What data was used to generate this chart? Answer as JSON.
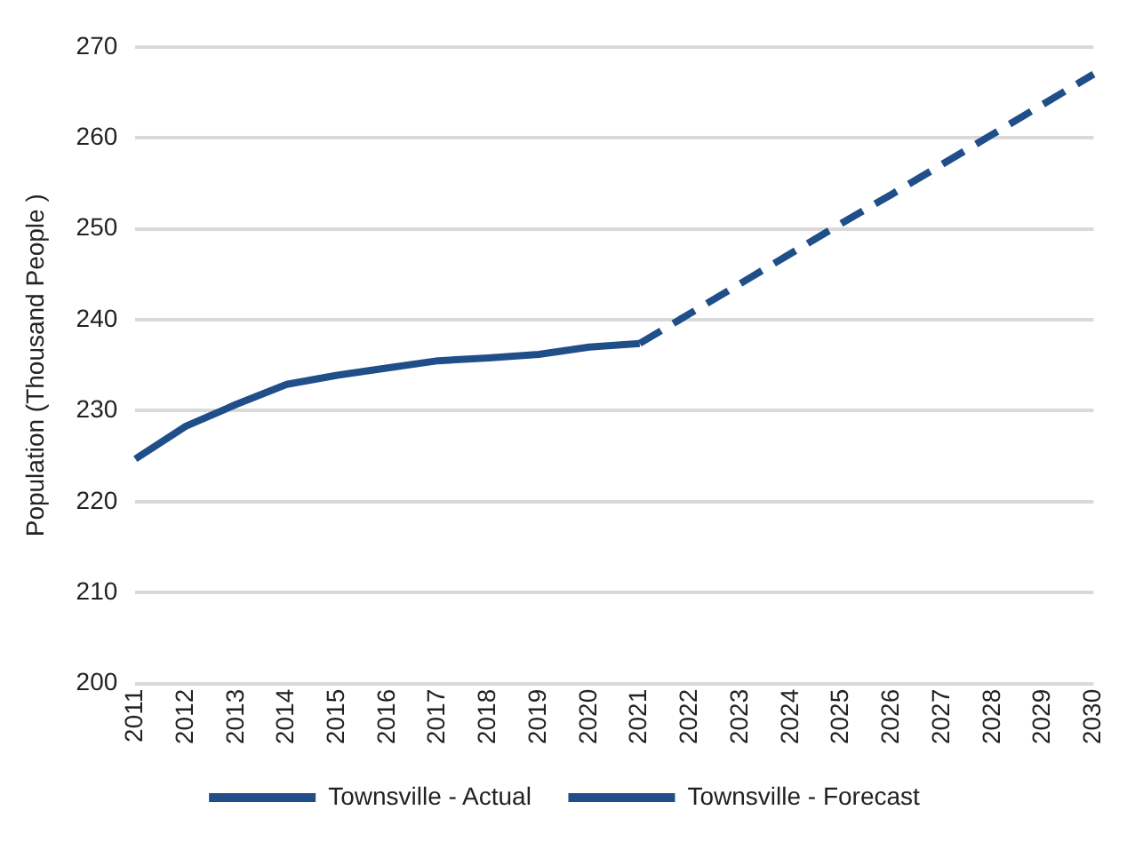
{
  "chart_data": {
    "type": "line",
    "ylabel": "Population (Thousand People )",
    "categories": [
      "2011",
      "2012",
      "2013",
      "2014",
      "2015",
      "2016",
      "2017",
      "2018",
      "2019",
      "2020",
      "2021",
      "2022",
      "2023",
      "2024",
      "2025",
      "2026",
      "2027",
      "2028",
      "2029",
      "2030"
    ],
    "series": [
      {
        "name": "Townsville - Actual",
        "color": "#1f4e89",
        "line_style": "solid",
        "values": [
          224.7,
          228.3,
          230.7,
          232.9,
          233.9,
          234.7,
          235.5,
          235.8,
          236.2,
          237.0,
          237.4,
          null,
          null,
          null,
          null,
          null,
          null,
          null,
          null,
          null
        ]
      },
      {
        "name": "Townsville - Forecast",
        "color": "#1f4e89",
        "line_style": "dashed",
        "values": [
          null,
          null,
          null,
          null,
          null,
          null,
          null,
          null,
          null,
          null,
          237.4,
          240.7,
          244.0,
          247.3,
          250.6,
          253.8,
          257.1,
          260.4,
          263.7,
          267.0
        ]
      }
    ],
    "ylim": [
      200,
      270
    ],
    "yticks": [
      200,
      210,
      220,
      230,
      240,
      250,
      260,
      270
    ],
    "grid": "y",
    "legend": "bottom",
    "marker": "none"
  }
}
